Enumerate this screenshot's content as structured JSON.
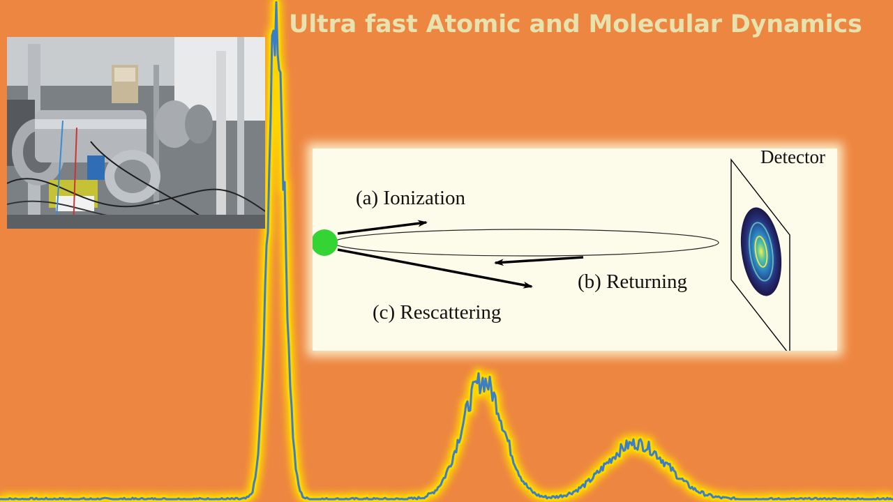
{
  "title": "Ultra fast Atomic and Molecular Dynamics",
  "diagram": {
    "detector_label": "Detector",
    "steps": [
      "(a) Ionization",
      "(b) Returning",
      "(c) Rescattering"
    ]
  },
  "colors": {
    "background": "#ed8640",
    "title": "#e8e2ae",
    "spectrum_line": "#3a7fc3",
    "spectrum_glow": "#ffd500",
    "atom": "#33d433"
  },
  "spectrum": {
    "peaks": [
      {
        "center": 396,
        "height": 690,
        "width": 12
      },
      {
        "center": 692,
        "height": 170,
        "width": 30
      },
      {
        "center": 912,
        "height": 80,
        "width": 45
      }
    ]
  }
}
